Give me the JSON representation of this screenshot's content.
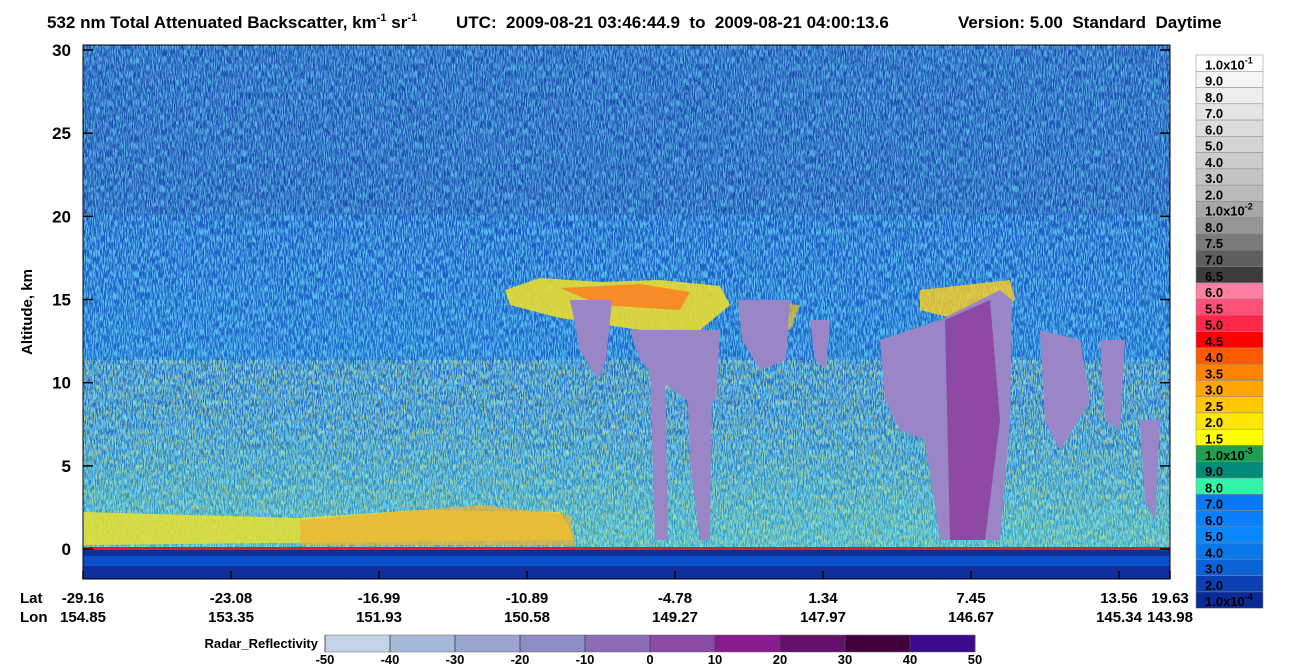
{
  "chart_data": {
    "type": "heatmap",
    "title": {
      "parts": [
        "532 nm Total Attenuated Backscatter, km",
        "-1",
        " sr",
        "-1"
      ],
      "utc": "UTC:  2009-08-21 03:46:44.9  to  2009-08-21 04:00:13.6",
      "version": "Version: 5.00  Standard  Daytime"
    },
    "y_label": "Altitude, km",
    "ylim": [
      -1.8,
      30.3
    ],
    "yticks": [
      0,
      5,
      10,
      15,
      20,
      25,
      30
    ],
    "x_axis": {
      "lat_label": "Lat",
      "lon_label": "Lon",
      "lat": [
        -29.16,
        -23.08,
        -16.99,
        -10.89,
        -4.78,
        1.34,
        7.45,
        13.56,
        19.63
      ],
      "lon": [
        154.85,
        153.35,
        151.93,
        150.58,
        149.27,
        147.97,
        146.67,
        145.34,
        143.98
      ]
    },
    "colorbar": {
      "labels": [
        {
          "base": "1.0x10",
          "exp": "-1"
        },
        "9.0",
        "8.0",
        "7.0",
        "6.0",
        "5.0",
        "4.0",
        "3.0",
        "2.0",
        {
          "base": "1.0x10",
          "exp": "-2"
        },
        "8.0",
        "7.5",
        "7.0",
        "6.5",
        "6.0",
        "5.5",
        "5.0",
        "4.5",
        "4.0",
        "3.5",
        "3.0",
        "2.5",
        "2.0",
        "1.5",
        {
          "base": "1.0x10",
          "exp": "-3"
        },
        "9.0",
        "8.0",
        "7.0",
        "6.0",
        "5.0",
        "4.0",
        "3.0",
        "2.0",
        {
          "base": "1.0x10",
          "exp": "-4"
        }
      ],
      "colors": [
        "#ffffff",
        "#f5f5f5",
        "#ededed",
        "#e4e4e4",
        "#dcdcdc",
        "#d4d4d4",
        "#cccccc",
        "#c4c4c4",
        "#bababa",
        "#a8a8a8",
        "#969696",
        "#7a7a7a",
        "#5e5e5e",
        "#3c3c3c",
        "#ff7fa0",
        "#ff5078",
        "#ff2848",
        "#ff0000",
        "#ff5a00",
        "#ff8200",
        "#ffa500",
        "#ffc800",
        "#ffe600",
        "#ffff00",
        "#1fa050",
        "#008c78",
        "#30f5a8",
        "#0a78f0",
        "#0a80ff",
        "#0a88ff",
        "#0a78e8",
        "#0a64d8",
        "#0a40b0",
        "#0a2a98"
      ]
    },
    "radar_colorbar": {
      "title": "Radar_Reflectivity",
      "lim": [
        -50,
        50
      ],
      "ticks": [
        -50,
        -40,
        -30,
        -20,
        -10,
        0,
        10,
        20,
        30,
        40,
        50
      ],
      "colors": [
        "#c4d4e6",
        "#a6b8d8",
        "#9aa4d0",
        "#8c8cc6",
        "#8c6cb6",
        "#8a4aa6",
        "#861c8e",
        "#64106c",
        "#42003e",
        "#3c0a8c"
      ]
    }
  }
}
